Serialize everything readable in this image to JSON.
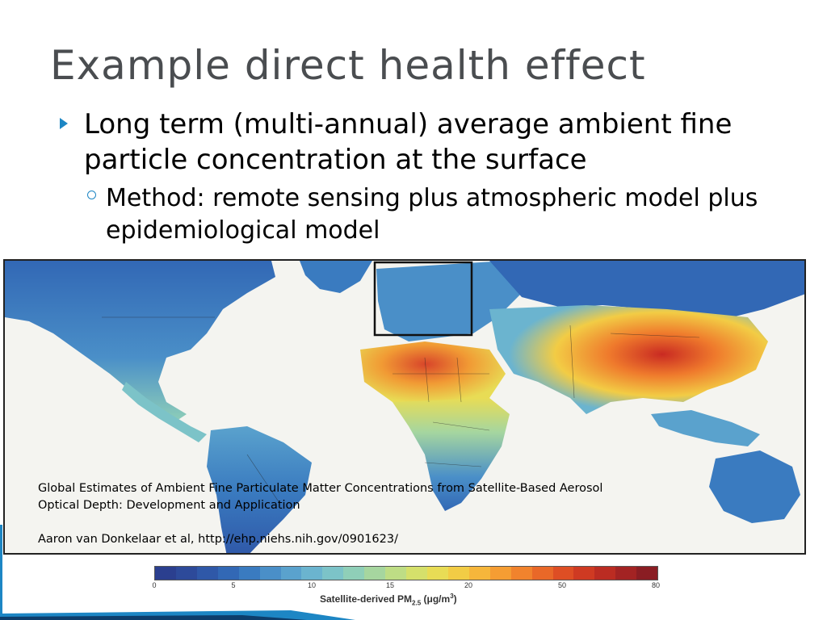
{
  "slide": {
    "title": "Example direct health effect",
    "bullet1": "Long term (multi-annual) average ambient fine particle concentration at the surface",
    "bullet2": "Method: remote sensing plus atmospheric model plus epidemiological model"
  },
  "caption": {
    "line1": "Global Estimates of Ambient Fine Particulate Matter Concentrations from Satellite-Based Aerosol",
    "line2": "Optical Depth: Development and Application",
    "line3": "Aaron van Donkelaar et al,  http://ehp.niehs.nih.gov/0901623/"
  },
  "colorbar": {
    "ticks": [
      "0",
      "5",
      "10",
      "15",
      "20",
      "50",
      "80"
    ],
    "label_main": "Satellite-derived PM",
    "label_sub": "2.5",
    "label_unit_pre": " (μg/m",
    "label_unit_sup": "3",
    "label_unit_post": ")",
    "colors": [
      "#2b3f8f",
      "#2d4a9a",
      "#2f58a8",
      "#3268b5",
      "#3a7bc0",
      "#4a8fc8",
      "#5aa2cd",
      "#6bb4cf",
      "#7cc3c8",
      "#8fcfb8",
      "#a6d69f",
      "#bedd85",
      "#d5e06b",
      "#e8dc55",
      "#f2cc45",
      "#f6b63b",
      "#f59d33",
      "#f1832d",
      "#e96828",
      "#de4e24",
      "#cf3a22",
      "#bb2c22",
      "#a32323",
      "#8a1d23"
    ]
  }
}
